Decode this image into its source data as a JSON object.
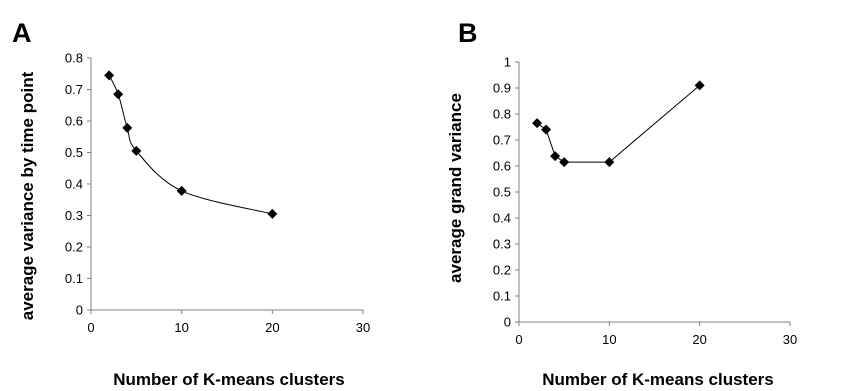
{
  "chart_data": [
    {
      "panel_label": "A",
      "type": "line",
      "xlabel": "Number of K-means clusters",
      "ylabel": "average variance by time point",
      "xlim": [
        0,
        30
      ],
      "ylim": [
        0,
        0.8
      ],
      "x_ticks": [
        "0",
        "10",
        "20",
        "30"
      ],
      "y_ticks": [
        "0",
        "0.1",
        "0.2",
        "0.3",
        "0.4",
        "0.5",
        "0.6",
        "0.7",
        "0.8"
      ],
      "grid": false,
      "marker": "diamond",
      "smooth": true,
      "points": [
        {
          "x": 2,
          "y": 0.745
        },
        {
          "x": 3,
          "y": 0.685
        },
        {
          "x": 4,
          "y": 0.578
        },
        {
          "x": 5,
          "y": 0.505
        },
        {
          "x": 10,
          "y": 0.378
        },
        {
          "x": 20,
          "y": 0.305
        }
      ]
    },
    {
      "panel_label": "B",
      "type": "line",
      "xlabel": "Number of K-means clusters",
      "ylabel": "average grand variance",
      "xlim": [
        0,
        30
      ],
      "ylim": [
        0,
        1
      ],
      "x_ticks": [
        "0",
        "10",
        "20",
        "30"
      ],
      "y_ticks": [
        "0",
        "0.1",
        "0.2",
        "0.3",
        "0.4",
        "0.5",
        "0.6",
        "0.7",
        "0.8",
        "0.9",
        "1"
      ],
      "grid": false,
      "marker": "diamond",
      "smooth": false,
      "points": [
        {
          "x": 2,
          "y": 0.765
        },
        {
          "x": 3,
          "y": 0.74
        },
        {
          "x": 4,
          "y": 0.638
        },
        {
          "x": 5,
          "y": 0.615
        },
        {
          "x": 10,
          "y": 0.615
        },
        {
          "x": 20,
          "y": 0.91
        }
      ]
    }
  ]
}
